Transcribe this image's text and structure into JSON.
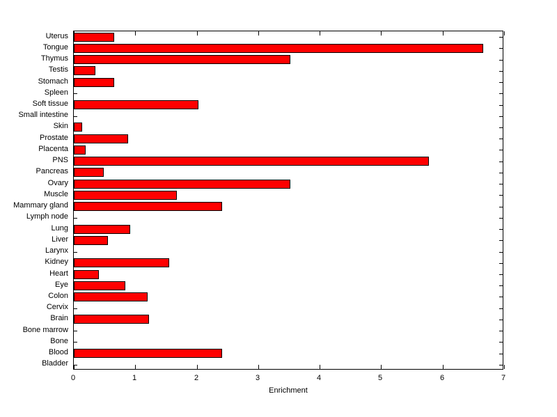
{
  "figure": {
    "background_color": "#FFFFFF",
    "axis_color": "#000000",
    "bar_fill_color": "#FF0000",
    "bar_edge_color": "#000000"
  },
  "chart_data": {
    "type": "bar",
    "orientation": "horizontal",
    "title": "",
    "xlabel": "Enrichment",
    "ylabel": "",
    "xlim": [
      0,
      7
    ],
    "x_ticks": [
      0,
      1,
      2,
      3,
      4,
      5,
      6,
      7
    ],
    "grid": false,
    "legend": null,
    "categories_order": "top-to-bottom",
    "categories": [
      "Uterus",
      "Tongue",
      "Thymus",
      "Testis",
      "Stomach",
      "Spleen",
      "Soft tissue",
      "Small intestine",
      "Skin",
      "Prostate",
      "Placenta",
      "PNS",
      "Pancreas",
      "Ovary",
      "Muscle",
      "Mammary gland",
      "Lymph node",
      "Lung",
      "Liver",
      "Larynx",
      "Kidney",
      "Heart",
      "Eye",
      "Colon",
      "Cervix",
      "Brain",
      "Bone marrow",
      "Bone",
      "Blood",
      "Bladder"
    ],
    "values": [
      0.66,
      6.66,
      3.52,
      0.35,
      0.66,
      0,
      2.03,
      0,
      0.14,
      0.88,
      0.19,
      5.78,
      0.49,
      3.52,
      1.68,
      2.41,
      0,
      0.92,
      0.55,
      0,
      1.55,
      0.41,
      0.84,
      1.2,
      0,
      1.22,
      0,
      0,
      2.41,
      0
    ]
  }
}
